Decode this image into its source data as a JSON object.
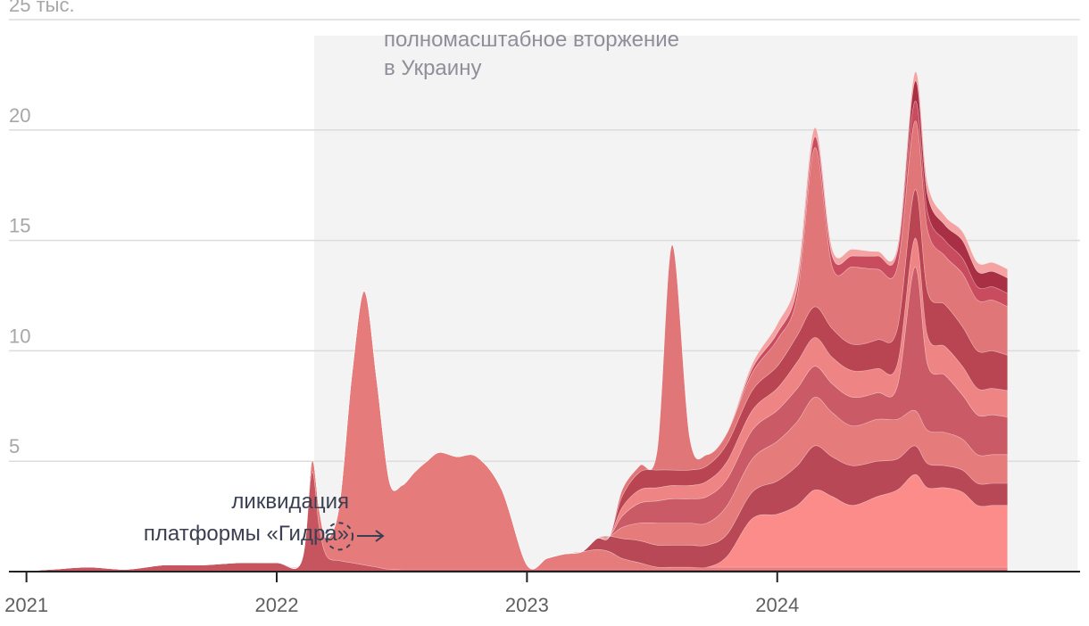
{
  "chart_data": {
    "type": "area",
    "stacked": true,
    "x_unit": "year",
    "x": [
      2020.97,
      2021.1,
      2021.25,
      2021.4,
      2021.55,
      2021.7,
      2021.85,
      2022.0,
      2022.1,
      2022.14,
      2022.17,
      2022.2,
      2022.25,
      2022.3,
      2022.35,
      2022.4,
      2022.45,
      2022.5,
      2022.55,
      2022.6,
      2022.65,
      2022.72,
      2022.8,
      2022.9,
      2023.0,
      2023.08,
      2023.15,
      2023.22,
      2023.28,
      2023.33,
      2023.38,
      2023.45,
      2023.52,
      2023.58,
      2023.65,
      2023.72,
      2023.8,
      2023.9,
      2024.0,
      2024.08,
      2024.15,
      2024.22,
      2024.3,
      2024.4,
      2024.48,
      2024.55,
      2024.6,
      2024.67,
      2024.74,
      2024.8,
      2024.86,
      2024.92
    ],
    "series": [
      {
        "color": "#c65560",
        "values": [
          0,
          0.1,
          0.2,
          0.1,
          0.3,
          0.3,
          0.4,
          0.4,
          0.5,
          4.5,
          2.0,
          0.7,
          0.5,
          0.4,
          0.3,
          0.2,
          0.1,
          0.1,
          0.1,
          0.1,
          0.1,
          0.1,
          0.1,
          0.1,
          0.1,
          0.1,
          0.1,
          0.1,
          0.1,
          0.1,
          0.1,
          0.1,
          0.1,
          0.1,
          0.1,
          0.1,
          0.1,
          0.1,
          0.1,
          0.1,
          0.1,
          0.1,
          0.1,
          0.1,
          0.1,
          0.1,
          0.1,
          0.1,
          0.1,
          0.1,
          0.1,
          0.1
        ]
      },
      {
        "color": "#e67b7b",
        "values": [
          0,
          0,
          0,
          0,
          0,
          0,
          0,
          0,
          0,
          0.5,
          0.8,
          0.8,
          2.5,
          8.5,
          12.4,
          8.5,
          4.0,
          3.8,
          4.4,
          4.9,
          5.3,
          5.1,
          5.1,
          3.6,
          0.2,
          0.5,
          0.7,
          0.8,
          0.9,
          0.8,
          0.5,
          0.3,
          0.1,
          0.1,
          0.1,
          0.1,
          0.1,
          0.1,
          0.1,
          0.1,
          0.1,
          0.1,
          0.1,
          0.1,
          0.1,
          0.1,
          0.1,
          0.1,
          0.1,
          0.1,
          0.1,
          0.1
        ]
      },
      {
        "color": "#fb8c8a",
        "values": [
          0,
          0,
          0,
          0,
          0,
          0,
          0,
          0,
          0,
          0,
          0,
          0,
          0,
          0,
          0,
          0,
          0,
          0,
          0,
          0,
          0,
          0,
          0,
          0,
          0,
          0,
          0,
          0,
          0,
          0,
          0,
          0,
          0,
          0,
          0,
          0,
          0.5,
          2.2,
          2.4,
          2.8,
          3.5,
          3.2,
          2.8,
          3.2,
          3.5,
          4.2,
          3.6,
          3.6,
          3.4,
          2.8,
          2.8,
          2.8
        ]
      },
      {
        "color": "#b84856",
        "values": [
          0,
          0,
          0,
          0,
          0,
          0,
          0,
          0,
          0,
          0,
          0,
          0,
          0,
          0,
          0,
          0,
          0,
          0,
          0,
          0,
          0,
          0,
          0,
          0,
          0,
          0,
          0,
          0,
          0.5,
          0.7,
          0.9,
          1.0,
          1.0,
          1.0,
          1.0,
          1.0,
          1.0,
          1.2,
          1.5,
          1.8,
          2.0,
          1.8,
          1.8,
          1.6,
          1.4,
          1.3,
          1.1,
          1.0,
          1.0,
          1.0,
          1.0,
          1.0
        ]
      },
      {
        "color": "#e67b7b",
        "values": [
          0,
          0,
          0,
          0,
          0,
          0,
          0,
          0,
          0,
          0,
          0,
          0,
          0,
          0,
          0,
          0,
          0,
          0,
          0,
          0,
          0,
          0,
          0,
          0,
          0,
          0,
          0,
          0,
          0,
          0,
          0.5,
          0.8,
          1.0,
          1.0,
          1.0,
          1.0,
          1.3,
          1.5,
          1.8,
          2.0,
          2.2,
          2.0,
          1.8,
          1.9,
          1.8,
          1.6,
          1.5,
          1.5,
          1.4,
          1.3,
          1.3,
          1.3
        ]
      },
      {
        "color": "#c95a66",
        "values": [
          0,
          0,
          0,
          0,
          0,
          0,
          0,
          0,
          0,
          0,
          0,
          0,
          0,
          0,
          0,
          0,
          0,
          0,
          0,
          0,
          0,
          0,
          0,
          0,
          0,
          0,
          0,
          0,
          0,
          0,
          0.5,
          0.9,
          1.0,
          1.1,
          1.1,
          1.2,
          1.2,
          1.3,
          1.4,
          1.5,
          1.4,
          1.3,
          1.3,
          1.2,
          1.5,
          6.5,
          3.0,
          2.6,
          2.0,
          1.8,
          1.8,
          1.7
        ]
      },
      {
        "color": "#ee8584",
        "values": [
          0,
          0,
          0,
          0,
          0,
          0,
          0,
          0,
          0,
          0,
          0,
          0,
          0,
          0,
          0,
          0,
          0,
          0,
          0,
          0,
          0,
          0,
          0,
          0,
          0,
          0,
          0,
          0,
          0,
          0,
          0.4,
          0.6,
          0.6,
          0.6,
          0.6,
          0.7,
          0.8,
          0.9,
          1.0,
          1.2,
          1.3,
          1.2,
          1.2,
          1.1,
          1.0,
          1.3,
          1.3,
          1.3,
          1.3,
          1.2,
          1.2,
          1.2
        ]
      },
      {
        "color": "#b94452",
        "values": [
          0,
          0,
          0,
          0,
          0,
          0,
          0,
          0,
          0,
          0,
          0,
          0,
          0,
          0,
          0,
          0,
          0,
          0,
          0,
          0,
          0,
          0,
          0,
          0,
          0,
          0,
          0,
          0,
          0,
          0,
          0.5,
          0.8,
          0.8,
          0.7,
          0.7,
          0.7,
          0.8,
          0.9,
          1.0,
          1.2,
          1.4,
          1.3,
          1.2,
          1.3,
          1.6,
          2.2,
          2.0,
          1.9,
          1.8,
          1.7,
          1.7,
          1.6
        ]
      },
      {
        "color": "#e17678",
        "values": [
          0,
          0,
          0,
          0,
          0,
          0,
          0,
          0,
          0,
          0,
          0,
          0,
          0,
          0,
          0,
          0,
          0,
          0,
          0,
          0,
          0,
          0,
          0,
          0,
          0,
          0,
          0,
          0,
          0,
          0,
          0.3,
          0.3,
          0.9,
          10.2,
          1.5,
          0.5,
          0.5,
          0.8,
          1.2,
          1.8,
          7.2,
          2.8,
          3.5,
          3.2,
          2.8,
          3.1,
          2.8,
          2.2,
          2.4,
          2.3,
          2.3,
          2.2
        ]
      },
      {
        "color": "#c94c5e",
        "values": [
          0,
          0,
          0,
          0,
          0,
          0,
          0,
          0,
          0,
          0,
          0,
          0,
          0,
          0,
          0,
          0,
          0,
          0,
          0,
          0,
          0,
          0,
          0,
          0,
          0,
          0,
          0,
          0,
          0,
          0,
          0,
          0,
          0,
          0,
          0,
          0,
          0,
          0.2,
          0.3,
          0.4,
          0.5,
          0.5,
          0.5,
          0.6,
          0.7,
          0.9,
          0.8,
          0.7,
          0.7,
          0.6,
          0.6,
          0.6
        ]
      },
      {
        "color": "#a93044",
        "values": [
          0,
          0,
          0,
          0,
          0,
          0,
          0,
          0,
          0,
          0,
          0,
          0,
          0,
          0,
          0,
          0,
          0,
          0,
          0,
          0,
          0,
          0,
          0,
          0,
          0,
          0,
          0,
          0,
          0,
          0,
          0,
          0,
          0,
          0,
          0,
          0,
          0,
          0,
          0,
          0,
          0,
          0,
          0,
          0,
          0,
          0.9,
          0.8,
          0.7,
          0.8,
          0.7,
          0.7,
          0.7
        ]
      },
      {
        "color": "#f4a3a2",
        "values": [
          0,
          0,
          0,
          0,
          0,
          0,
          0,
          0,
          0,
          0,
          0,
          0,
          0,
          0,
          0,
          0,
          0,
          0,
          0,
          0,
          0,
          0,
          0,
          0,
          0,
          0,
          0,
          0,
          0,
          0,
          0,
          0,
          0,
          0,
          0,
          0,
          0,
          0.2,
          0.4,
          0.5,
          0.4,
          0.3,
          0.3,
          0.2,
          0.2,
          0.4,
          0.5,
          0.4,
          0.4,
          0.4,
          0.4,
          0.4
        ]
      }
    ],
    "xlim": [
      2020.93,
      2025.21
    ],
    "ylim": [
      0,
      25
    ],
    "yticks": [
      5,
      10,
      15,
      20,
      25
    ],
    "ytick_labels": [
      "5",
      "10",
      "15",
      "20",
      "25 тыс."
    ],
    "xticks": [
      2021,
      2022,
      2023,
      2024
    ],
    "xtick_labels": [
      "2021",
      "2022",
      "2023",
      "2024"
    ],
    "grid": "horizontal",
    "shaded_period": {
      "from": 2022.15,
      "to": 2025.2
    },
    "annotations": {
      "invasion_line1": "полномасштабное вторжение",
      "invasion_line2": "в Украину",
      "hydra_line1": "ликвидация",
      "hydra_line2": "платформы «Гидра»",
      "hydra_x": 2022.25,
      "hydra_y": 1.6
    }
  }
}
